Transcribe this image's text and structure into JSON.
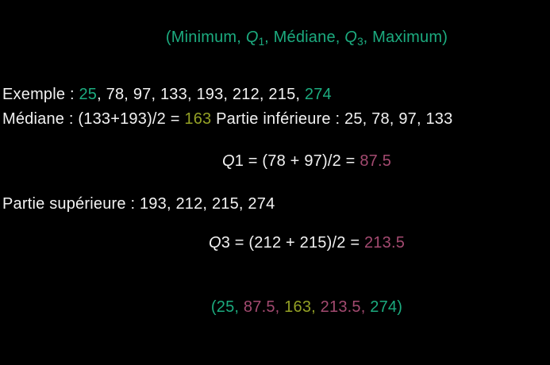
{
  "colors": {
    "background": "#000000",
    "text": "#f2f2f2",
    "green": "#1cab7f",
    "olive": "#94a125",
    "pink": "#a34a70"
  },
  "title": {
    "segments": [
      {
        "text": "(Minimum, "
      },
      {
        "text": "Q",
        "italic": true
      },
      {
        "text": "1",
        "sub": true
      },
      {
        "text": ", Médiane, "
      },
      {
        "text": "Q",
        "italic": true
      },
      {
        "text": "3",
        "sub": true
      },
      {
        "text": ", Maximum)"
      }
    ]
  },
  "lines": {
    "exemple": {
      "segments": [
        {
          "text": "Exemple : "
        },
        {
          "text": "25",
          "color": "green"
        },
        {
          "text": ", 78, 97, 133, 193, 212, 215, "
        },
        {
          "text": "274",
          "color": "green"
        }
      ]
    },
    "mediane": {
      "segments": [
        {
          "text": "Médiane : (133+193)/2 = "
        },
        {
          "text": "163",
          "color": "olive"
        },
        {
          "text": " Partie inférieure : 25, 78, 97, 133"
        }
      ]
    },
    "q1": {
      "segments": [
        {
          "text": "Q",
          "italic": true
        },
        {
          "text": "1 = (78 + 97)/2 = "
        },
        {
          "text": "87.5",
          "color": "pink"
        }
      ]
    },
    "partie_superieure": {
      "segments": [
        {
          "text": "Partie supérieure : 193, 212, 215, 274"
        }
      ]
    },
    "q3": {
      "segments": [
        {
          "text": "Q",
          "italic": true
        },
        {
          "text": "3 = (212 + 215)/2 = "
        },
        {
          "text": "213.5",
          "color": "pink"
        }
      ]
    },
    "summary": {
      "segments": [
        {
          "text": "(",
          "color": "green"
        },
        {
          "text": "25",
          "color": "green"
        },
        {
          "text": ", ",
          "color": "green"
        },
        {
          "text": "87.5",
          "color": "pink"
        },
        {
          "text": ", ",
          "color": "pink"
        },
        {
          "text": "163",
          "color": "olive"
        },
        {
          "text": ", ",
          "color": "olive"
        },
        {
          "text": "213.5",
          "color": "pink"
        },
        {
          "text": ", ",
          "color": "pink"
        },
        {
          "text": "274",
          "color": "green"
        },
        {
          "text": ")",
          "color": "green"
        }
      ]
    }
  },
  "values": {
    "dataset": [
      25,
      78,
      97,
      133,
      193,
      212,
      215,
      274
    ],
    "partie_inferieure": [
      25,
      78,
      97,
      133
    ],
    "partie_superieure": [
      193,
      212,
      215,
      274
    ],
    "minimum": 25,
    "q1": 87.5,
    "mediane": 163,
    "q3": 213.5,
    "maximum": 274
  }
}
